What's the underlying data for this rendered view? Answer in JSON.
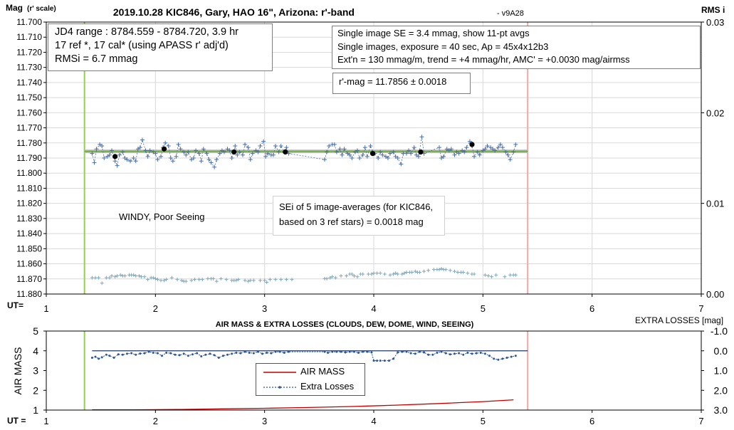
{
  "chart_data": [
    {
      "type": "scatter",
      "title": "2019.10.28 KIC846, Gary, HAO 16\", Arizona: r'-band",
      "version": " - v9A28",
      "ylabel_main": "Mag",
      "ylabel_sub": "(r' scale)",
      "y2label": "RMS i",
      "xlabel": "UT=",
      "xlim": [
        1,
        7
      ],
      "x_ticks": [
        1,
        2,
        3,
        4,
        5,
        6,
        7
      ],
      "ylim": [
        11.88,
        11.7
      ],
      "y_ticks": [
        11.7,
        11.71,
        11.72,
        11.73,
        11.74,
        11.75,
        11.76,
        11.77,
        11.78,
        11.79,
        11.8,
        11.81,
        11.82,
        11.83,
        11.84,
        11.85,
        11.86,
        11.87,
        11.88
      ],
      "y2lim": [
        0.0,
        0.03
      ],
      "y2_ticks": [
        0.0,
        0.01,
        0.02,
        0.03
      ],
      "grid": true,
      "vlines": [
        {
          "x": 1.35,
          "color": "#92d050"
        },
        {
          "x": 5.41,
          "color": "#f4a6a6"
        }
      ],
      "hlines": [
        {
          "y": 11.7856,
          "x_from": 1.35,
          "x_to": 5.41,
          "color": "#bfbfbf"
        },
        {
          "y": 11.7856,
          "x_from": 1.35,
          "x_to": 5.41,
          "color": "#70ad47"
        }
      ],
      "series": [
        {
          "marker": "+",
          "color": "#4a6fa5",
          "dashed": true,
          "x": [
            1.42,
            1.44,
            1.46,
            1.49,
            1.51,
            1.53,
            1.56,
            1.58,
            1.6,
            1.63,
            1.65,
            1.67,
            1.7,
            1.72,
            1.74,
            1.77,
            1.8,
            1.82,
            1.84,
            1.86,
            1.88,
            1.91,
            1.93,
            1.95,
            1.98,
            2.0,
            2.02,
            2.05,
            2.07,
            2.09,
            2.12,
            2.14,
            2.16,
            2.19,
            2.21,
            2.23,
            2.26,
            2.28,
            2.3,
            2.33,
            2.35,
            2.37,
            2.4,
            2.42,
            2.44,
            2.47,
            2.49,
            2.51,
            2.54,
            2.56,
            2.59,
            2.61,
            2.63,
            2.66,
            2.68,
            2.7,
            2.73,
            2.75,
            2.77,
            2.8,
            2.82,
            2.85,
            2.87,
            2.89,
            2.92,
            2.94,
            2.96,
            2.99,
            3.01,
            3.03,
            3.06,
            3.08,
            3.1,
            3.13,
            3.15,
            3.18,
            3.2,
            3.22,
            3.55,
            3.57,
            3.59,
            3.62,
            3.64,
            3.66,
            3.69,
            3.71,
            3.73,
            3.76,
            3.78,
            3.8,
            3.83,
            3.85,
            3.87,
            3.9,
            3.92,
            3.94,
            3.97,
            3.99,
            4.01,
            4.04,
            4.06,
            4.08,
            4.11,
            4.13,
            4.15,
            4.18,
            4.2,
            4.22,
            4.25,
            4.27,
            4.3,
            4.32,
            4.34,
            4.37,
            4.39,
            4.41,
            4.44,
            4.46,
            4.6,
            4.62,
            4.64,
            4.67,
            4.69,
            4.71,
            4.74,
            4.76,
            4.78,
            4.81,
            4.83,
            4.85,
            4.88,
            4.9,
            4.92,
            4.95,
            4.97,
            5.0,
            5.02,
            5.04,
            5.07,
            5.09,
            5.11,
            5.14,
            5.16,
            5.18,
            5.21,
            5.23,
            5.25,
            5.28,
            5.3
          ],
          "y": [
            11.787,
            11.793,
            11.784,
            11.781,
            11.782,
            11.79,
            11.789,
            11.788,
            11.785,
            11.792,
            11.795,
            11.788,
            11.786,
            11.79,
            11.791,
            11.792,
            11.79,
            11.792,
            11.784,
            11.783,
            11.778,
            11.785,
            11.789,
            11.785,
            11.786,
            11.787,
            11.791,
            11.789,
            11.783,
            11.78,
            11.782,
            11.79,
            11.792,
            11.789,
            11.781,
            11.784,
            11.786,
            11.788,
            11.786,
            11.791,
            11.79,
            11.785,
            11.787,
            11.792,
            11.784,
            11.787,
            11.791,
            11.793,
            11.796,
            11.791,
            11.787,
            11.785,
            11.786,
            11.784,
            11.785,
            11.79,
            11.782,
            11.788,
            11.786,
            11.788,
            11.781,
            11.783,
            11.791,
            11.787,
            11.785,
            11.786,
            11.782,
            11.779,
            11.789,
            11.787,
            11.788,
            11.788,
            11.782,
            11.786,
            11.782,
            11.786,
            11.783,
            11.787,
            11.791,
            11.786,
            11.782,
            11.781,
            11.781,
            11.786,
            11.784,
            11.788,
            11.784,
            11.787,
            11.788,
            11.79,
            11.786,
            11.785,
            11.79,
            11.788,
            11.783,
            11.789,
            11.782,
            11.786,
            11.787,
            11.79,
            11.786,
            11.788,
            11.789,
            11.79,
            11.787,
            11.786,
            11.789,
            11.79,
            11.794,
            11.787,
            11.787,
            11.785,
            11.787,
            11.783,
            11.788,
            11.789,
            11.776,
            11.787,
            11.783,
            11.79,
            11.789,
            11.784,
            11.785,
            11.784,
            11.788,
            11.786,
            11.787,
            11.785,
            11.786,
            11.783,
            11.779,
            11.782,
            11.789,
            11.786,
            11.788,
            11.785,
            11.784,
            11.782,
            11.783,
            11.784,
            11.785,
            11.783,
            11.781,
            11.783,
            11.786,
            11.788,
            11.791,
            11.786,
            11.781
          ]
        },
        {
          "marker": "dot",
          "color": "#000000",
          "x": [
            1.63,
            2.08,
            2.72,
            3.19,
            3.99,
            4.43,
            4.9
          ],
          "y": [
            11.789,
            11.784,
            11.786,
            11.786,
            11.787,
            11.786,
            11.781
          ]
        },
        {
          "marker": "+",
          "color": "#7fa7b8",
          "axis": "y2",
          "x": [
            1.42,
            1.45,
            1.48,
            1.51,
            1.55,
            1.58,
            1.6,
            1.63,
            1.65,
            1.68,
            1.7,
            1.72,
            1.76,
            1.78,
            1.8,
            1.82,
            1.85,
            1.87,
            1.9,
            1.93,
            1.96,
            1.98,
            2.0,
            2.02,
            2.05,
            2.08,
            2.1,
            2.15,
            2.2,
            2.24,
            2.26,
            2.28,
            2.33,
            2.36,
            2.4,
            2.43,
            2.48,
            2.51,
            2.53,
            2.56,
            2.6,
            2.65,
            2.7,
            2.72,
            2.74,
            2.76,
            2.82,
            2.85,
            2.87,
            2.9,
            2.96,
            3.0,
            3.02,
            3.05,
            3.1,
            3.15,
            3.2,
            3.25,
            3.55,
            3.57,
            3.6,
            3.62,
            3.65,
            3.7,
            3.75,
            3.78,
            3.8,
            3.82,
            3.85,
            3.88,
            3.9,
            3.95,
            3.98,
            4.0,
            4.03,
            4.06,
            4.1,
            4.15,
            4.18,
            4.2,
            4.22,
            4.26,
            4.28,
            4.3,
            4.33,
            4.35,
            4.38,
            4.4,
            4.42,
            4.46,
            4.5,
            4.55,
            4.58,
            4.6,
            4.62,
            4.64,
            4.66,
            4.7,
            4.74,
            4.77,
            4.8,
            4.82,
            4.86,
            4.9,
            4.92,
            5.02,
            5.05,
            5.08,
            5.12,
            5.2,
            5.25,
            5.28,
            5.3
          ],
          "y": [
            0.0018,
            0.0018,
            0.0018,
            0.0012,
            0.0018,
            0.0018,
            0.002,
            0.0019,
            0.002,
            0.0021,
            0.002,
            0.002,
            0.0021,
            0.0021,
            0.0021,
            0.002,
            0.002,
            0.0019,
            0.0019,
            0.0016,
            0.0018,
            0.0018,
            0.0017,
            0.0016,
            0.0015,
            0.0015,
            0.0016,
            0.0018,
            0.0016,
            0.0015,
            0.0014,
            0.0014,
            0.0015,
            0.0016,
            0.0016,
            0.0016,
            0.0017,
            0.0017,
            0.0017,
            0.0014,
            0.0017,
            0.0016,
            0.0015,
            0.0015,
            0.0015,
            0.0016,
            0.0015,
            0.0014,
            0.0015,
            0.0015,
            0.0015,
            0.0015,
            0.0013,
            0.0016,
            0.0016,
            0.0016,
            0.0016,
            0.0016,
            0.0017,
            0.0017,
            0.0018,
            0.0019,
            0.0018,
            0.002,
            0.002,
            0.0022,
            0.0022,
            0.002,
            0.0019,
            0.0022,
            0.0022,
            0.0022,
            0.0022,
            0.0023,
            0.0023,
            0.0023,
            0.0022,
            0.0021,
            0.0022,
            0.0023,
            0.0022,
            0.0022,
            0.0023,
            0.0024,
            0.0024,
            0.0024,
            0.0025,
            0.0024,
            0.0024,
            0.0025,
            0.0026,
            0.0027,
            0.0027,
            0.0027,
            0.0028,
            0.0027,
            0.0027,
            0.0026,
            0.0025,
            0.0024,
            0.0024,
            0.0024,
            0.0023,
            0.0022,
            0.0022,
            0.0021,
            0.002,
            0.0019,
            0.0021,
            0.0019,
            0.0021,
            0.0021,
            0.0021
          ]
        }
      ],
      "annotations": {
        "box1": [
          "JD4 range : 8784.559 - 8784.720,  3.9  hr",
          "17 ref *, 17 cal* (using APASS r' adj'd)",
          "RMSi = 6.7 mmag"
        ],
        "box2": [
          "Single image SE = 3.4 mmag, show  11-pt avgs",
          "Single images, exposure = 40 sec, Ap = 45x4x12b3",
          "Ext'n = 130 mmag/m, trend =  +4 mmag/hr, AMC' = +0.0030 mag/airmss"
        ],
        "box3": "r'-mag = 11.7856 ± 0.0018",
        "box4": [
          "SEi of 5 image-averages (for KIC846,",
          "based on 3 ref stars) = 0.0018 mag"
        ],
        "note": "WINDY, Poor Seeing"
      }
    },
    {
      "type": "line",
      "title": "AIR MASS & EXTRA LOSSES (CLOUDS, DEW, DOME, WIND, SEEING)",
      "ylabel": "AIR MASS",
      "y2label": "EXTRA LOSSES [mag]",
      "xlabel": "UT =",
      "xlim": [
        1,
        7
      ],
      "x_ticks": [
        1,
        2,
        3,
        4,
        5,
        6,
        7
      ],
      "ylim": [
        1,
        5
      ],
      "y_ticks": [
        1,
        2,
        3,
        4,
        5
      ],
      "y2lim": [
        3.0,
        -1.0
      ],
      "y2_ticks": [
        "-1.0",
        "0.0",
        "1.0",
        "2.0",
        "3.0"
      ],
      "vlines": [
        {
          "x": 1.35,
          "color": "#92d050"
        },
        {
          "x": 5.41,
          "color": "#f4a6a6"
        }
      ],
      "hline": {
        "y2": 0.0,
        "x_from": 1.42,
        "x_to": 5.41,
        "color": "#1f3864"
      },
      "legend": [
        "AIR MASS",
        "Extra Losses"
      ],
      "legend_position": "center",
      "series": [
        {
          "name": "AIR MASS",
          "color": "#c00000",
          "x": [
            1.42,
            1.8,
            2.2,
            2.6,
            3.0,
            3.4,
            3.8,
            4.2,
            4.6,
            5.0,
            5.28
          ],
          "y": [
            1.01,
            1.01,
            1.03,
            1.06,
            1.09,
            1.13,
            1.18,
            1.25,
            1.33,
            1.43,
            1.52
          ]
        },
        {
          "name": "Extra Losses",
          "color": "#2f5597",
          "axis": "y2",
          "dashed": true,
          "x": [
            1.42,
            1.45,
            1.48,
            1.51,
            1.55,
            1.58,
            1.62,
            1.66,
            1.7,
            1.74,
            1.78,
            1.82,
            1.86,
            1.9,
            1.94,
            1.98,
            2.02,
            2.06,
            2.1,
            2.14,
            2.18,
            2.22,
            2.26,
            2.3,
            2.34,
            2.38,
            2.42,
            2.46,
            2.5,
            2.54,
            2.58,
            2.62,
            2.66,
            2.7,
            2.74,
            2.78,
            2.82,
            2.86,
            2.9,
            2.94,
            2.98,
            3.02,
            3.06,
            3.1,
            3.14,
            3.18,
            3.22,
            3.55,
            3.58,
            3.62,
            3.66,
            3.7,
            3.74,
            3.78,
            3.82,
            3.86,
            3.9,
            3.94,
            3.98,
            4.0,
            4.03,
            4.06,
            4.1,
            4.14,
            4.18,
            4.22,
            4.26,
            4.3,
            4.34,
            4.38,
            4.42,
            4.46,
            4.5,
            4.54,
            4.58,
            4.62,
            4.66,
            4.7,
            4.74,
            4.78,
            4.82,
            4.86,
            4.9,
            4.94,
            4.98,
            5.02,
            5.06,
            5.1,
            5.14,
            5.18,
            5.22,
            5.26,
            5.3
          ],
          "y": [
            0.35,
            0.3,
            0.4,
            0.33,
            0.2,
            0.25,
            0.35,
            0.18,
            0.2,
            0.15,
            0.12,
            0.2,
            0.14,
            0.12,
            0.05,
            0.1,
            0.12,
            0.25,
            0.1,
            0.12,
            0.2,
            0.22,
            0.15,
            0.25,
            0.18,
            0.12,
            0.28,
            0.2,
            0.15,
            0.22,
            0.35,
            0.25,
            0.2,
            0.15,
            0.1,
            0.12,
            0.05,
            0.1,
            0.12,
            0.05,
            0.15,
            0.1,
            0.12,
            0.05,
            0.05,
            0.1,
            0.05,
            0.05,
            0.1,
            0.05,
            0.05,
            0.05,
            0.08,
            0.05,
            0.05,
            0.1,
            0.05,
            0.05,
            0.08,
            0.5,
            0.5,
            0.5,
            0.5,
            0.5,
            0.4,
            0.08,
            0.05,
            0.05,
            0.12,
            0.15,
            0.05,
            0.08,
            0.2,
            0.2,
            0.1,
            0.05,
            0.12,
            0.18,
            0.15,
            0.12,
            0.2,
            0.1,
            0.15,
            0.12,
            0.1,
            0.15,
            0.25,
            0.4,
            0.45,
            0.4,
            0.35,
            0.3,
            0.25
          ]
        }
      ]
    }
  ]
}
